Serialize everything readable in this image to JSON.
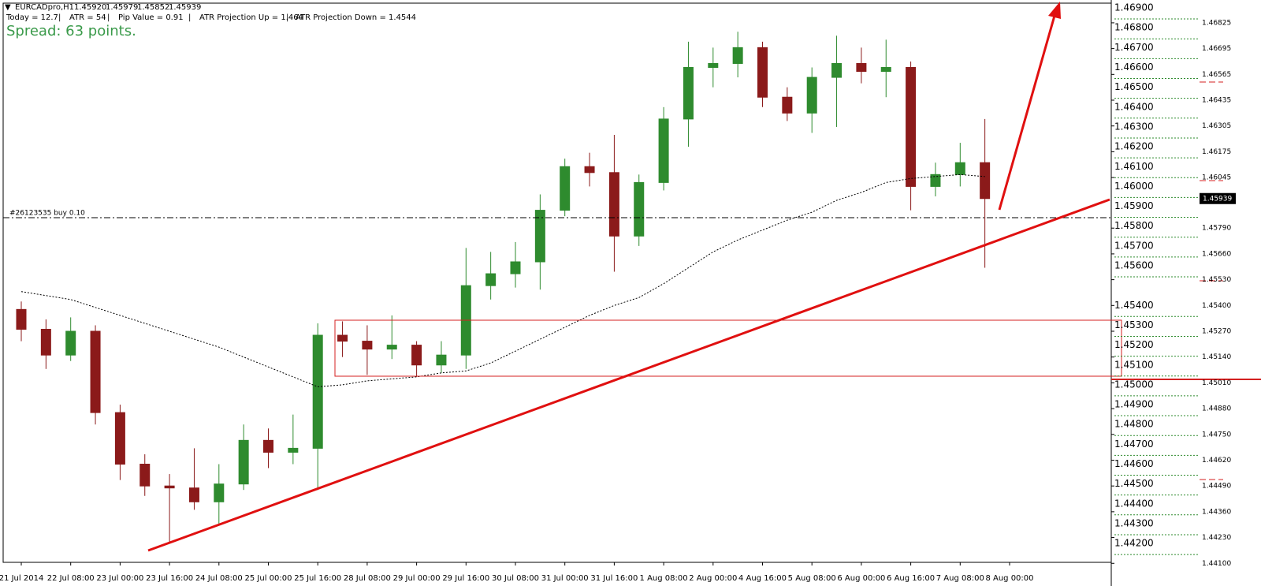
{
  "header": {
    "symbol": "EURCADpro,H1",
    "prices": [
      "1.45920",
      "1.45979",
      "1.45852",
      "1.45939"
    ],
    "info": [
      "Today = 12.7",
      "ATR = 54",
      "Pip Value = 0.91",
      "ATR Projection Up = 1.464",
      "ATR Projection Down = 1.4544"
    ],
    "spread": "Spread: 63 points.",
    "order": "#26123535 buy 0.10"
  },
  "chart_data": {
    "type": "candlestick",
    "categories": [
      "21 Jul 2014",
      null,
      "22 Jul 08:00",
      null,
      "23 Jul 00:00",
      null,
      "23 Jul 16:00",
      null,
      "24 Jul 08:00",
      null,
      "25 Jul 00:00",
      null,
      "25 Jul 16:00",
      null,
      "28 Jul 08:00",
      null,
      "29 Jul 00:00",
      null,
      "29 Jul 16:00",
      null,
      "30 Jul 08:00",
      null,
      "31 Jul 00:00",
      null,
      "31 Jul 16:00",
      null,
      "1 Aug 08:00",
      null,
      "2 Aug 00:00",
      null,
      "4 Aug 16:00",
      null,
      "5 Aug 08:00",
      null,
      "6 Aug 00:00",
      null,
      "6 Aug 16:00",
      null,
      "7 Aug 08:00",
      null,
      "8 Aug 00:00"
    ],
    "open": [
      1.4538,
      1.4528,
      1.4515,
      1.4527,
      1.4486,
      1.446,
      1.4449,
      1.4448,
      1.4441,
      1.445,
      1.4472,
      1.4466,
      1.4468,
      1.4525,
      1.4522,
      1.4518,
      1.452,
      1.451,
      1.4515,
      1.455,
      1.4556,
      1.4562,
      1.4588,
      1.461,
      1.4607,
      1.4575,
      1.4602,
      1.4634,
      1.466,
      1.4662,
      1.467,
      1.4645,
      1.4637,
      1.4655,
      1.4662,
      1.4658,
      1.466,
      1.46,
      1.4606,
      1.4612,
      null
    ],
    "high": [
      1.4542,
      1.4533,
      1.4534,
      1.453,
      1.449,
      1.4465,
      1.4455,
      1.4468,
      1.446,
      1.448,
      1.4478,
      1.4485,
      1.4531,
      1.4532,
      1.453,
      1.4535,
      1.4522,
      1.4522,
      1.4569,
      1.4567,
      1.4572,
      1.4596,
      1.4614,
      1.4617,
      1.4626,
      1.4606,
      1.464,
      1.4673,
      1.467,
      1.4678,
      1.4673,
      1.465,
      1.466,
      1.4676,
      1.467,
      1.4674,
      1.4663,
      1.4612,
      1.4622,
      1.4634,
      null
    ],
    "low": [
      1.4522,
      1.4508,
      1.4512,
      1.448,
      1.4452,
      1.4444,
      1.442,
      1.4437,
      1.4429,
      1.4447,
      1.4458,
      1.446,
      1.4447,
      1.4514,
      1.4505,
      1.4513,
      1.4504,
      1.4506,
      1.4508,
      1.4543,
      1.4549,
      1.4548,
      1.4585,
      1.46,
      1.4557,
      1.457,
      1.4598,
      1.462,
      1.465,
      1.4655,
      1.464,
      1.4633,
      1.4627,
      1.463,
      1.4652,
      1.4645,
      1.4588,
      1.4595,
      1.46,
      1.4559,
      null
    ],
    "close": [
      1.4528,
      1.4515,
      1.4527,
      1.4486,
      1.446,
      1.4449,
      1.4448,
      1.4441,
      1.445,
      1.4472,
      1.4466,
      1.4468,
      1.4525,
      1.4522,
      1.4518,
      1.452,
      1.451,
      1.4515,
      1.455,
      1.4556,
      1.4562,
      1.4588,
      1.461,
      1.4607,
      1.4575,
      1.4602,
      1.4634,
      1.466,
      1.4662,
      1.467,
      1.4645,
      1.4637,
      1.4655,
      1.4662,
      1.4658,
      1.466,
      1.46,
      1.4606,
      1.4612,
      1.45939,
      null
    ],
    "ma": [
      1.4547,
      1.4545,
      1.4543,
      1.4539,
      1.4535,
      1.4531,
      1.4527,
      1.4523,
      1.4519,
      1.4514,
      1.4509,
      1.4504,
      1.4499,
      1.45,
      1.4502,
      1.4503,
      1.4504,
      1.4506,
      1.4507,
      1.4511,
      1.4517,
      1.4523,
      1.4529,
      1.4535,
      1.454,
      1.4544,
      1.4551,
      1.4559,
      1.4567,
      1.4573,
      1.4578,
      1.4583,
      1.4587,
      1.4593,
      1.4597,
      1.4602,
      1.4604,
      1.4605,
      1.4606,
      1.4605,
      null
    ],
    "up_color": "#2e8b2e",
    "down_color": "#8b1a1a",
    "ma_color": "#000000",
    "ylim": [
      1.44105,
      1.4694
    ],
    "yticks": [
      1.46825,
      1.46695,
      1.46565,
      1.46435,
      1.46305,
      1.46175,
      1.46045,
      {
        "value": 1.4579,
        "label": "1.45790"
      },
      {
        "value": 1.4566,
        "label": "1.45660"
      },
      {
        "value": 1.4553,
        "label": "1.45530"
      },
      {
        "value": 1.454,
        "label": "1.45400"
      },
      {
        "value": 1.4527,
        "label": "1.45270"
      },
      {
        "value": 1.4514,
        "label": "1.45140"
      },
      {
        "value": 1.4501,
        "label": "1.45010"
      },
      {
        "value": 1.4488,
        "label": "1.44880"
      },
      {
        "value": 1.4475,
        "label": "1.44750"
      },
      {
        "value": 1.4462,
        "label": "1.44620"
      },
      {
        "value": 1.4449,
        "label": "1.44490"
      },
      {
        "value": 1.4436,
        "label": "1.44360"
      },
      {
        "value": 1.4423,
        "label": "1.44230"
      },
      {
        "value": 1.441,
        "label": "1.44100"
      }
    ],
    "levels": [
      {
        "value": 1.469,
        "label": "1.46900"
      },
      {
        "value": 1.468,
        "label": "1.46800"
      },
      {
        "value": 1.467,
        "label": "1.46700"
      },
      {
        "value": 1.466,
        "label": "1.46600"
      },
      {
        "value": 1.465,
        "label": "1.46500"
      },
      {
        "value": 1.464,
        "label": "1.46400"
      },
      {
        "value": 1.463,
        "label": "1.46300"
      },
      {
        "value": 1.462,
        "label": "1.46200"
      },
      {
        "value": 1.461,
        "label": "1.46100"
      },
      {
        "value": 1.46,
        "label": "1.46000"
      },
      {
        "value": 1.459,
        "label": "1.45900"
      },
      {
        "value": 1.458,
        "label": "1.45800"
      },
      {
        "value": 1.457,
        "label": "1.45700"
      },
      {
        "value": 1.456,
        "label": "1.45600"
      },
      {
        "value": 1.454,
        "label": "1.45400"
      },
      {
        "value": 1.453,
        "label": "1.45300"
      },
      {
        "value": 1.452,
        "label": "1.45200"
      },
      {
        "value": 1.451,
        "label": "1.45100"
      },
      {
        "value": 1.45,
        "label": "1.45000"
      },
      {
        "value": 1.449,
        "label": "1.44900"
      },
      {
        "value": 1.448,
        "label": "1.44800"
      },
      {
        "value": 1.447,
        "label": "1.44700"
      },
      {
        "value": 1.446,
        "label": "1.44600"
      },
      {
        "value": 1.445,
        "label": "1.44500"
      },
      {
        "value": 1.444,
        "label": "1.44400"
      },
      {
        "value": 1.443,
        "label": "1.44300"
      },
      {
        "value": 1.442,
        "label": "1.44200"
      }
    ],
    "level_color": "#2e8b2e",
    "current_price": {
      "value": 1.45939,
      "label": "1.45939"
    }
  }
}
